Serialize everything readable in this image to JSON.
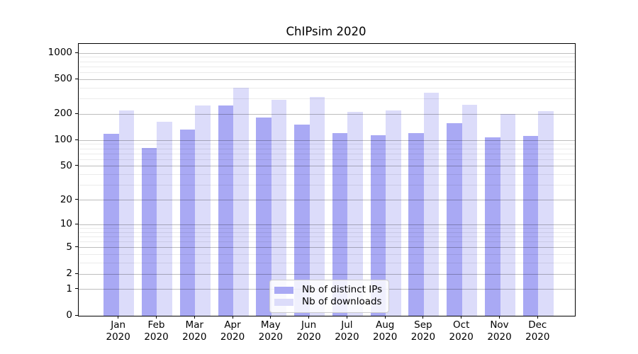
{
  "title": "ChIPsim 2020",
  "chart_data": {
    "type": "bar",
    "title": "ChIPsim 2020",
    "categories": [
      "Jan 2020",
      "Feb 2020",
      "Mar 2020",
      "Apr 2020",
      "May 2020",
      "Jun 2020",
      "Jul 2020",
      "Aug 2020",
      "Sep 2020",
      "Oct 2020",
      "Nov 2020",
      "Dec 2020"
    ],
    "series": [
      {
        "name": "Nb of distinct IPs",
        "color": "#a9a9f4",
        "values": [
          120,
          82,
          134,
          252,
          183,
          152,
          122,
          115,
          121,
          157,
          108,
          112
        ]
      },
      {
        "name": "Nb of downloads",
        "color": "#dcdcfa",
        "values": [
          222,
          164,
          250,
          400,
          292,
          315,
          213,
          222,
          352,
          255,
          201,
          216
        ]
      }
    ],
    "yscale": "log1p",
    "ylim": [
      0,
      1250
    ],
    "y_major_ticks": [
      0,
      1,
      2,
      5,
      10,
      20,
      50,
      100,
      200,
      500,
      1000
    ],
    "y_minor_ticks": [
      3,
      4,
      6,
      7,
      8,
      9,
      30,
      40,
      60,
      70,
      80,
      90,
      300,
      400,
      600,
      700,
      800,
      900
    ],
    "xlabel": "",
    "ylabel": "",
    "grid": true,
    "legend_position": "lower-center"
  }
}
